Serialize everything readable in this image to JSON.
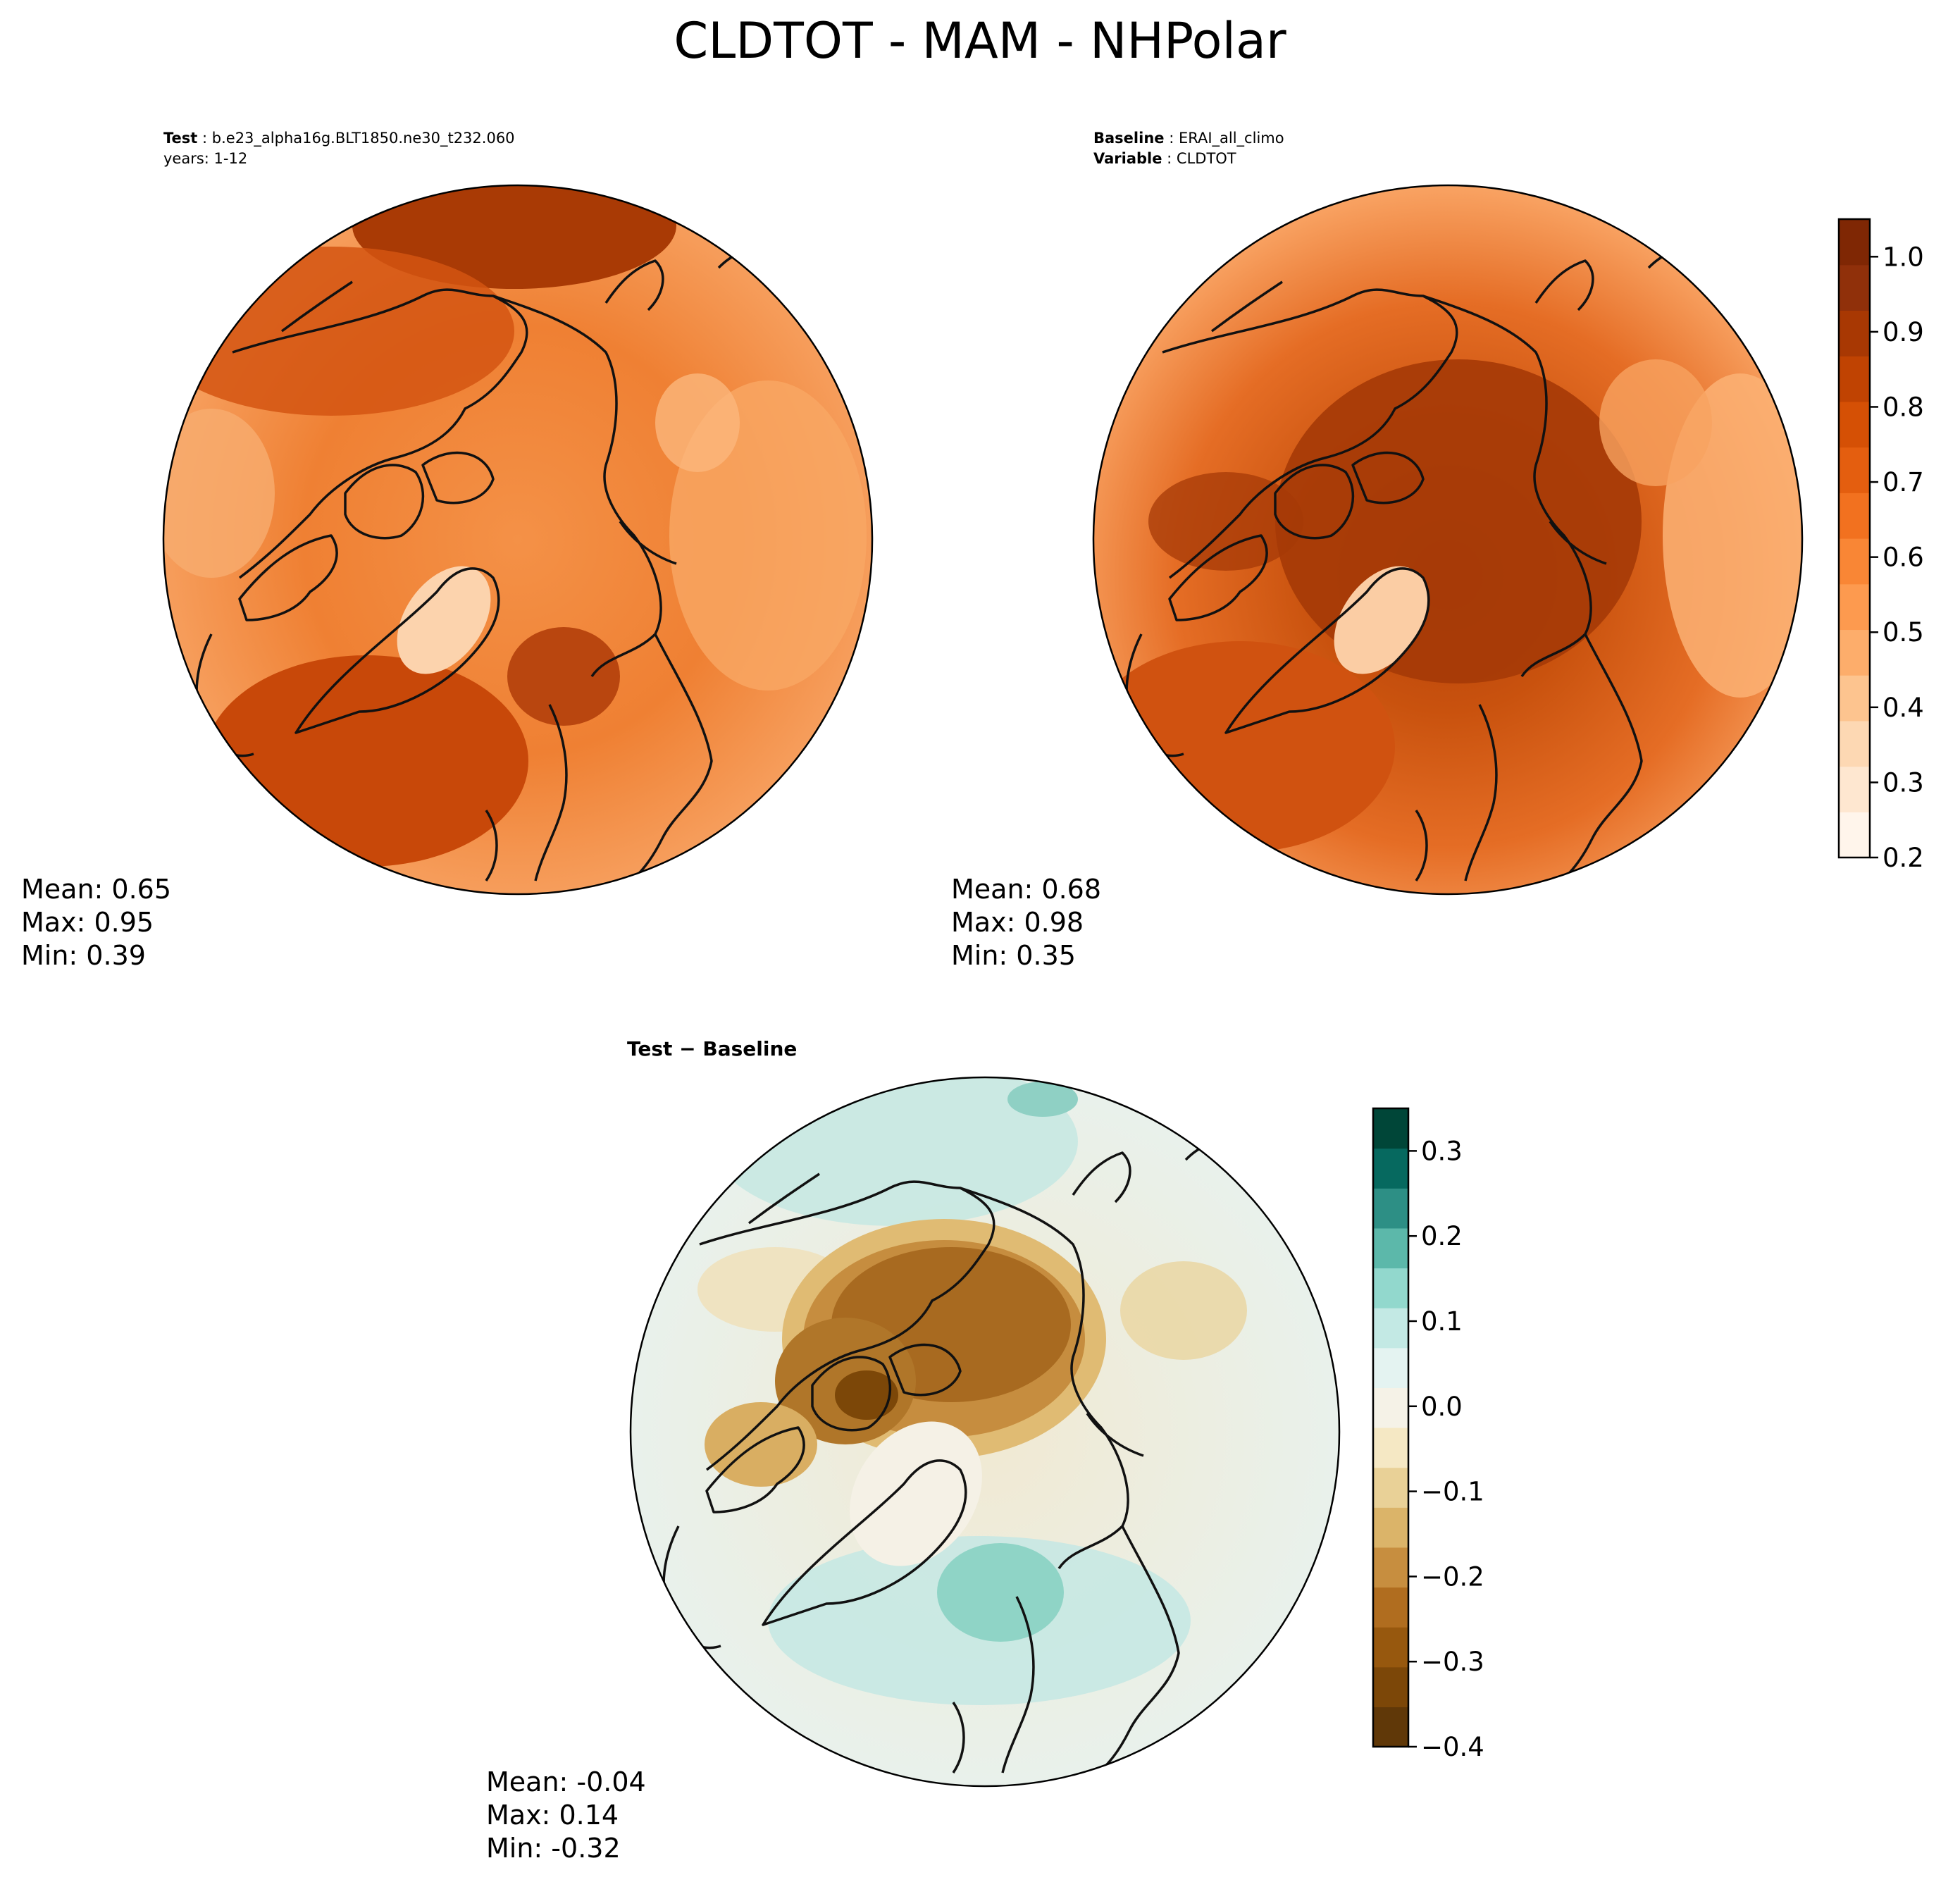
{
  "title": "CLDTOT - MAM - NHPolar",
  "panels": {
    "test": {
      "label_bold": "Test",
      "label_value": "b.e23_alpha16g.BLT1850.ne30_t232.060",
      "line2": "years: 1-12",
      "stats": {
        "mean": "Mean:  0.65",
        "max": "Max:  0.95",
        "min": "Min:  0.39"
      }
    },
    "baseline": {
      "label_bold": "Baseline",
      "label_value": "ERAI_all_climo",
      "line2_bold": "Variable",
      "line2_value": "CLDTOT",
      "stats": {
        "mean": "Mean:  0.68",
        "max": "Max:  0.98",
        "min": "Min:  0.35"
      }
    },
    "diff": {
      "label": "Test − Baseline",
      "stats": {
        "mean": "Mean: -0.04",
        "max": "Max:  0.14",
        "min": "Min: -0.32"
      }
    }
  },
  "colorbar_main": {
    "ticks": [
      "0.2",
      "0.3",
      "0.4",
      "0.5",
      "0.6",
      "0.7",
      "0.8",
      "0.9",
      "1.0"
    ],
    "range": [
      0.2,
      1.05
    ],
    "colors": [
      "#fff5eb",
      "#fee7d0",
      "#fdd8b3",
      "#fdc48f",
      "#fdad6b",
      "#fd9a4f",
      "#f98635",
      "#f2711f",
      "#e45e0f",
      "#d55005",
      "#c04302",
      "#a83803",
      "#90300a",
      "#7f2704"
    ]
  },
  "colorbar_diff": {
    "ticks": [
      "−0.4",
      "−0.3",
      "−0.2",
      "−0.1",
      "0.0",
      "0.1",
      "0.2",
      "0.3"
    ],
    "range": [
      -0.4,
      0.35
    ],
    "colors": [
      "#603808",
      "#7c4708",
      "#97580e",
      "#b06d1f",
      "#c78e3f",
      "#dbb469",
      "#e9d197",
      "#f5e8c4",
      "#f5f2e7",
      "#e4f3f1",
      "#c3e9e4",
      "#92d8cd",
      "#5cb8aa",
      "#2d8f85",
      "#06695f",
      "#004638"
    ]
  },
  "colors": {
    "test_fill": "#f08a3c",
    "baseline_fill": "#e06a24",
    "diff_fill": "#f1efe3",
    "coast": "#111111"
  }
}
